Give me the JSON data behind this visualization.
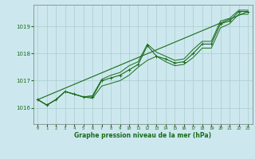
{
  "bg_color": "#cce8ee",
  "grid_color": "#aacccc",
  "line_color": "#1a6b1a",
  "xlabel": "Graphe pression niveau de la mer (hPa)",
  "xlim": [
    -0.5,
    23.5
  ],
  "ylim": [
    1015.4,
    1019.8
  ],
  "yticks": [
    1016,
    1017,
    1018,
    1019
  ],
  "xticks": [
    0,
    1,
    2,
    3,
    4,
    5,
    6,
    7,
    8,
    9,
    10,
    11,
    12,
    13,
    14,
    15,
    16,
    17,
    18,
    19,
    20,
    21,
    22,
    23
  ],
  "hours": [
    0,
    1,
    2,
    3,
    4,
    5,
    6,
    7,
    8,
    9,
    10,
    11,
    12,
    13,
    14,
    15,
    16,
    17,
    18,
    19,
    20,
    21,
    22,
    23
  ],
  "pressure_main": [
    1016.3,
    1016.1,
    1016.3,
    1016.6,
    1016.5,
    1016.4,
    1016.4,
    1017.0,
    1017.1,
    1017.2,
    1017.4,
    1017.6,
    1018.3,
    1017.9,
    1017.8,
    1017.65,
    1017.7,
    1018.0,
    1018.35,
    1018.35,
    1019.1,
    1019.2,
    1019.55,
    1019.55
  ],
  "pressure_min": [
    1016.3,
    1016.1,
    1016.3,
    1016.6,
    1016.5,
    1016.4,
    1016.35,
    1016.8,
    1016.9,
    1017.0,
    1017.2,
    1017.5,
    1017.75,
    1017.9,
    1017.7,
    1017.55,
    1017.6,
    1017.85,
    1018.2,
    1018.2,
    1018.95,
    1019.1,
    1019.45,
    1019.45
  ],
  "pressure_max": [
    1016.3,
    1016.1,
    1016.3,
    1016.6,
    1016.5,
    1016.4,
    1016.45,
    1017.05,
    1017.2,
    1017.3,
    1017.55,
    1017.7,
    1018.35,
    1018.05,
    1017.9,
    1017.75,
    1017.8,
    1018.15,
    1018.45,
    1018.45,
    1019.2,
    1019.3,
    1019.6,
    1019.6
  ],
  "trend_x": [
    0,
    23
  ],
  "trend_y": [
    1016.3,
    1019.55
  ],
  "figsize": [
    3.2,
    2.0
  ],
  "dpi": 100
}
